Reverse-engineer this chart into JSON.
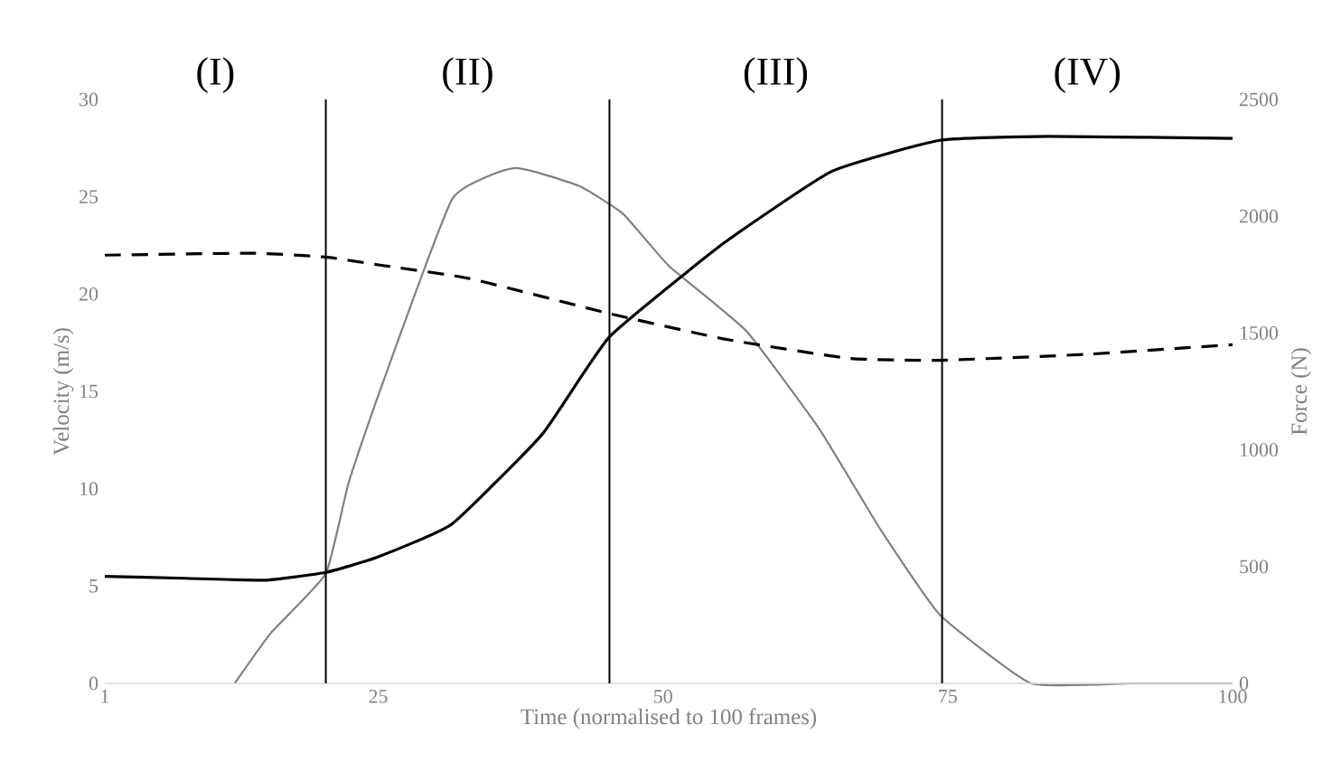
{
  "chart_data": {
    "type": "line",
    "xlabel": "Time (normalised to 100 frames)",
    "ylabel": "Velocity (m/s)",
    "y2label": "Force (N)",
    "xlim": [
      1,
      100
    ],
    "xticks": [
      1,
      25,
      50,
      75,
      100
    ],
    "ylim": [
      0,
      30
    ],
    "yticks": [
      0,
      5,
      10,
      15,
      20,
      25,
      30
    ],
    "y2lim": [
      0,
      2500
    ],
    "y2ticks": [
      0,
      500,
      1000,
      1500,
      2000,
      2500
    ],
    "grid": false,
    "marker": "none",
    "series": [
      {
        "color": "#000000",
        "line_style": "solid",
        "x": [
          1,
          8,
          15,
          20.4,
          25,
          31.5,
          39.4,
          45.3,
          55.3,
          64.8,
          74.3,
          83.8,
          100
        ],
        "values": [
          5.5,
          5.4,
          5.3,
          5.7,
          6.5,
          8.2,
          12.8,
          17.8,
          22.6,
          26.3,
          27.9,
          28.1,
          28
        ]
      },
      {
        "color": "#000000",
        "line_style": "dashed",
        "x": [
          1,
          14,
          20.4,
          25,
          33,
          45.3,
          55.3,
          66.3,
          74.3,
          87,
          100
        ],
        "values": [
          22,
          22.1,
          21.9,
          21.5,
          20.8,
          19,
          17.7,
          16.7,
          16.6,
          16.9,
          17.4
        ]
      },
      {
        "color": "#808080",
        "line_style": "solid",
        "axis": "y2",
        "x": [
          12.4,
          15.6,
          20.4,
          22.4,
          25.1,
          31.5,
          37,
          42.6,
          46.5,
          50.5,
          57.3,
          63.7,
          69.1,
          74.3,
          82.3,
          91.3,
          100
        ],
        "values": [
          0,
          217,
          470,
          859,
          1246,
          2074,
          2206,
          2130,
          2010,
          1788,
          1509,
          1091,
          658,
          294,
          0,
          0,
          0
        ]
      }
    ],
    "ref_lines": [
      {
        "axis": "x",
        "value": 20.4,
        "color": "#000000"
      },
      {
        "axis": "x",
        "value": 45.3,
        "color": "#000000"
      },
      {
        "axis": "x",
        "value": 74.5,
        "color": "#000000"
      }
    ],
    "annotations": [
      "(I)",
      "(II)",
      "(III)",
      "(IV)"
    ]
  }
}
